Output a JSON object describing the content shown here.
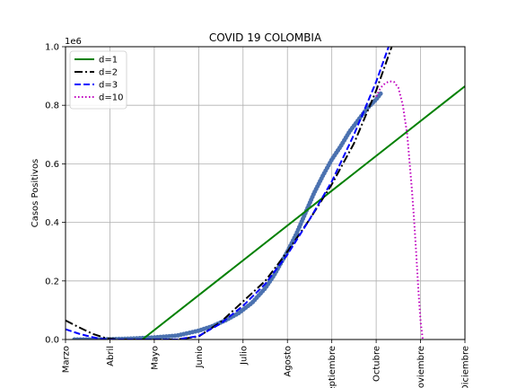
{
  "chart_data": {
    "type": "line",
    "title": "COVID 19 COLOMBIA",
    "xlabel": "",
    "ylabel": "Casos Positivos",
    "y_offset_text": "1e6",
    "xlim": [
      0,
      9
    ],
    "ylim": [
      0,
      1.0
    ],
    "x_unit": "months since Marzo 2020",
    "grid": true,
    "legend": "top-left",
    "x_ticks": [
      {
        "value": 0,
        "label": "Marzo"
      },
      {
        "value": 1,
        "label": "Abril"
      },
      {
        "value": 2,
        "label": "Mayo"
      },
      {
        "value": 3,
        "label": "Junio"
      },
      {
        "value": 4,
        "label": "Julio"
      },
      {
        "value": 5,
        "label": "Agosto"
      },
      {
        "value": 6,
        "label": "Septiembre"
      },
      {
        "value": 7,
        "label": "Octubre"
      },
      {
        "value": 8,
        "label": "Noviembre"
      },
      {
        "value": 9,
        "label": "Diciembre"
      }
    ],
    "y_ticks": [
      {
        "value": 0.0,
        "label": "0.0"
      },
      {
        "value": 0.2,
        "label": "0.2"
      },
      {
        "value": 0.4,
        "label": "0.4"
      },
      {
        "value": 0.6,
        "label": "0.6"
      },
      {
        "value": 0.8,
        "label": "0.8"
      },
      {
        "value": 1.0,
        "label": "1.0"
      }
    ],
    "data_series": {
      "color": "#4c72b0",
      "x": [
        0.2,
        0.5,
        1.0,
        1.5,
        2.0,
        2.5,
        3.0,
        3.3,
        3.6,
        3.9,
        4.2,
        4.5,
        4.7,
        5.0,
        5.2,
        5.4,
        5.6,
        5.8,
        6.0,
        6.2,
        6.4,
        6.6,
        6.8,
        7.0,
        7.1
      ],
      "y": [
        0.0,
        0.0,
        0.001,
        0.003,
        0.007,
        0.013,
        0.03,
        0.045,
        0.065,
        0.09,
        0.125,
        0.175,
        0.22,
        0.3,
        0.36,
        0.43,
        0.5,
        0.56,
        0.615,
        0.66,
        0.71,
        0.75,
        0.79,
        0.82,
        0.84
      ]
    },
    "series": [
      {
        "name": "d=1",
        "color": "#008000",
        "dash": "solid",
        "x": [
          1.73,
          9.0
        ],
        "y": [
          0.0,
          0.865
        ]
      },
      {
        "name": "d=2",
        "color": "#000000",
        "dash": "dashdot",
        "x": [
          0.0,
          0.3,
          0.6,
          0.9,
          1.2,
          1.5,
          2.0,
          2.5,
          3.0,
          3.5,
          4.0,
          4.5,
          5.0,
          5.5,
          6.0,
          6.5,
          7.0,
          7.35
        ],
        "y": [
          0.065,
          0.042,
          0.02,
          0.005,
          0.0,
          0.0,
          0.0,
          0.0,
          0.01,
          0.06,
          0.13,
          0.2,
          0.3,
          0.41,
          0.53,
          0.67,
          0.85,
          1.0
        ]
      },
      {
        "name": "d=3",
        "color": "#0000ff",
        "dash": "dashed",
        "x": [
          0.0,
          0.3,
          0.6,
          0.8,
          1.0,
          1.5,
          2.0,
          2.5,
          3.0,
          3.5,
          4.0,
          4.5,
          5.0,
          5.5,
          6.0,
          6.5,
          7.0,
          7.28
        ],
        "y": [
          0.035,
          0.02,
          0.008,
          0.002,
          0.0,
          0.0,
          0.0,
          0.0,
          0.012,
          0.055,
          0.115,
          0.19,
          0.29,
          0.41,
          0.54,
          0.7,
          0.88,
          1.0
        ]
      },
      {
        "name": "d=10",
        "color": "#bf00bf",
        "dash": "dotted",
        "x": [
          7.0,
          7.1,
          7.2,
          7.3,
          7.4,
          7.5,
          7.6,
          7.7,
          7.8,
          7.85,
          7.9,
          7.95,
          8.0,
          8.05
        ],
        "y": [
          0.83,
          0.86,
          0.875,
          0.882,
          0.88,
          0.86,
          0.8,
          0.7,
          0.52,
          0.42,
          0.3,
          0.17,
          0.06,
          0.0
        ]
      }
    ]
  }
}
